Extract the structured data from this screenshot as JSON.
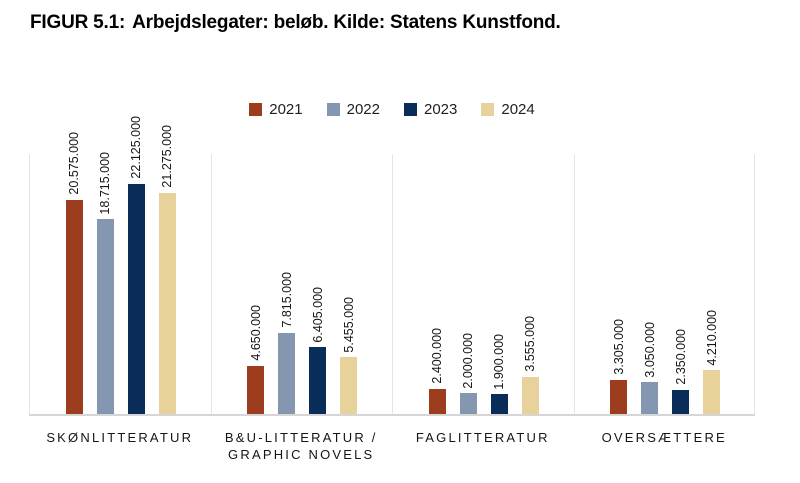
{
  "figure": {
    "label": "FIGUR 5.1:",
    "caption": "Arbejdslegater: beløb. Kilde: Statens Kunstfond."
  },
  "chart_data": {
    "type": "bar",
    "title": "FIGUR 5.1: Arbejdslegater: beløb. Kilde: Statens Kunstfond.",
    "categories": [
      "SKØNLITTERATUR",
      "B&U-LITTERATUR / GRAPHIC NOVELS",
      "FAGLITTERATUR",
      "OVERSÆTTERE"
    ],
    "category_lines": [
      [
        "SKØNLITTERATUR"
      ],
      [
        "B&U-LITTERATUR /",
        "GRAPHIC NOVELS"
      ],
      [
        "FAGLITTERATUR"
      ],
      [
        "OVERSÆTTERE"
      ]
    ],
    "series": [
      {
        "name": "2021",
        "color": "#9e3d1e",
        "values": [
          20575000,
          4650000,
          2400000,
          3305000
        ]
      },
      {
        "name": "2022",
        "color": "#8596b0",
        "values": [
          18715000,
          7815000,
          2000000,
          3050000
        ]
      },
      {
        "name": "2023",
        "color": "#0a2c58",
        "values": [
          22125000,
          6405000,
          1900000,
          2350000
        ]
      },
      {
        "name": "2024",
        "color": "#e7d29c",
        "values": [
          21275000,
          5455000,
          3555000,
          4210000
        ]
      }
    ],
    "value_labels": [
      [
        "20.575.000",
        "4.650.000",
        "2.400.000",
        "3.305.000"
      ],
      [
        "18.715.000",
        "7.815.000",
        "2.000.000",
        "3.050.000"
      ],
      [
        "22.125.000",
        "6.405.000",
        "1.900.000",
        "2.350.000"
      ],
      [
        "21.275.000",
        "5.455.000",
        "3.555.000",
        "4.210.000"
      ]
    ],
    "xlabel": "",
    "ylabel": "",
    "ylim": [
      0,
      25000000
    ],
    "grid": "panel-separators-only",
    "legend_position": "top-center",
    "baseline_color": "#d6d6d6",
    "separator_color": "#e4e4e4"
  }
}
